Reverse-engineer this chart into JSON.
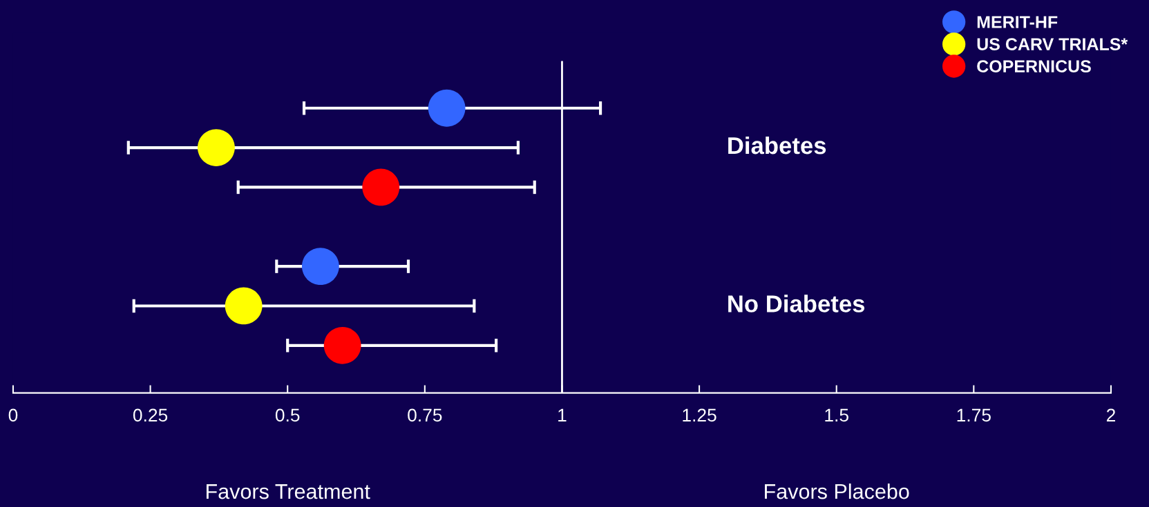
{
  "chart_data": {
    "type": "scatter",
    "orientation": "horizontal",
    "categories": [
      "Diabetes",
      "No Diabetes"
    ],
    "series": [
      {
        "name": "MERIT-HF",
        "color": "#3366ff",
        "values": [
          0.79,
          0.56
        ],
        "errors": [
          [
            0.53,
            1.07
          ],
          [
            0.48,
            0.72
          ]
        ]
      },
      {
        "name": "US CARV TRIALS*",
        "color": "#ffff00",
        "values": [
          0.37,
          0.42
        ],
        "errors": [
          [
            0.21,
            0.92
          ],
          [
            0.22,
            0.84
          ]
        ]
      },
      {
        "name": "COPERNICUS",
        "color": "#ff0000",
        "values": [
          0.67,
          0.6
        ],
        "errors": [
          [
            0.41,
            0.95
          ],
          [
            0.5,
            0.88
          ]
        ]
      }
    ],
    "xlim": [
      0,
      2
    ],
    "xticks": [
      0,
      0.25,
      0.5,
      0.75,
      1,
      1.25,
      1.5,
      1.75,
      2
    ],
    "ref_lines": [
      {
        "axis": "x",
        "value": 1,
        "color": "#ffffff"
      }
    ],
    "annotations": [
      "Favors Treatment",
      "Favors Placebo"
    ],
    "tick_labels": "x",
    "legend": "top right",
    "grid": false,
    "marker": "circle"
  }
}
